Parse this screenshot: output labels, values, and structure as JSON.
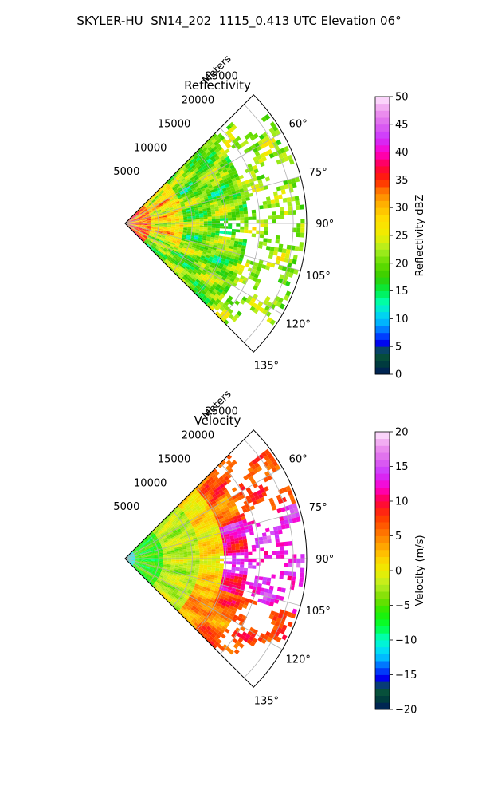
{
  "figure": {
    "title": "SKYLER-HU  SN14_202  1115_0.413 UTC Elevation 06°"
  },
  "chart_data": [
    {
      "type": "heatmap",
      "projection": "polar-sector",
      "title": "Reflectivity",
      "radial_axis_label": "Meters",
      "radial_ticks": [
        "5000",
        "10000",
        "15000",
        "20000",
        "25000"
      ],
      "radial_tick_values": [
        5000,
        10000,
        15000,
        20000,
        25000
      ],
      "rmax": 27000,
      "azimuth_range_deg": [
        45,
        135
      ],
      "azimuth_ticks": [
        "60°",
        "75°",
        "90°",
        "105°",
        "120°",
        "135°"
      ],
      "azimuth_tick_values": [
        60,
        75,
        90,
        105,
        120,
        135
      ],
      "grid": true,
      "colorbar": {
        "label": "Reflectivity dBZ",
        "range": [
          0,
          50
        ],
        "ticks": [
          "0",
          "5",
          "10",
          "15",
          "20",
          "25",
          "30",
          "35",
          "40",
          "45",
          "50"
        ],
        "tick_values": [
          0,
          5,
          10,
          15,
          20,
          25,
          30,
          35,
          40,
          45,
          50
        ],
        "stops": [
          {
            "value": 0,
            "color": "#001a5c"
          },
          {
            "value": 2,
            "color": "#003d3d"
          },
          {
            "value": 4,
            "color": "#0a5a3a"
          },
          {
            "value": 5.5,
            "color": "#0000ee"
          },
          {
            "value": 7,
            "color": "#0044ff"
          },
          {
            "value": 9,
            "color": "#00aaff"
          },
          {
            "value": 11,
            "color": "#00ddee"
          },
          {
            "value": 13,
            "color": "#00ffaa"
          },
          {
            "value": 15,
            "color": "#00ee44"
          },
          {
            "value": 17.5,
            "color": "#33cc00"
          },
          {
            "value": 20,
            "color": "#66dd00"
          },
          {
            "value": 22.5,
            "color": "#aaee22"
          },
          {
            "value": 25,
            "color": "#eeee00"
          },
          {
            "value": 28,
            "color": "#ffdd00"
          },
          {
            "value": 31,
            "color": "#ffaa00"
          },
          {
            "value": 33,
            "color": "#ff7700"
          },
          {
            "value": 35,
            "color": "#ff2200"
          },
          {
            "value": 37.5,
            "color": "#ff0044"
          },
          {
            "value": 40,
            "color": "#ff00cc"
          },
          {
            "value": 42.5,
            "color": "#cc33ff"
          },
          {
            "value": 45,
            "color": "#dd66ee"
          },
          {
            "value": 47.5,
            "color": "#ee99ee"
          },
          {
            "value": 50,
            "color": "#ffe8ff"
          }
        ]
      },
      "field": {
        "description": "high values (30-38) near radar at 50-115 deg, mostly 15-28 elsewhere, patchy echo beyond ~18 km"
      }
    },
    {
      "type": "heatmap",
      "projection": "polar-sector",
      "title": "Velocity",
      "radial_axis_label": "Meters",
      "radial_ticks": [
        "5000",
        "10000",
        "15000",
        "20000",
        "25000"
      ],
      "radial_tick_values": [
        5000,
        10000,
        15000,
        20000,
        25000
      ],
      "rmax": 27000,
      "azimuth_range_deg": [
        45,
        135
      ],
      "azimuth_ticks": [
        "60°",
        "75°",
        "90°",
        "105°",
        "120°",
        "135°"
      ],
      "azimuth_tick_values": [
        60,
        75,
        90,
        105,
        120,
        135
      ],
      "grid": true,
      "colorbar": {
        "label": "Velocity (m/s)",
        "range": [
          -20,
          20
        ],
        "ticks": [
          "−20",
          "−15",
          "−10",
          "−5",
          "0",
          "5",
          "10",
          "15",
          "20"
        ],
        "tick_values": [
          -20,
          -15,
          -10,
          -5,
          0,
          5,
          10,
          15,
          20
        ],
        "stops": [
          {
            "value": -20,
            "color": "#001a5c"
          },
          {
            "value": -18.5,
            "color": "#003d3d"
          },
          {
            "value": -17,
            "color": "#0a5a3a"
          },
          {
            "value": -15.5,
            "color": "#0000ee"
          },
          {
            "value": -14,
            "color": "#0055ff"
          },
          {
            "value": -12.5,
            "color": "#00bbff"
          },
          {
            "value": -11,
            "color": "#00eeee"
          },
          {
            "value": -9.5,
            "color": "#00ffaa"
          },
          {
            "value": -8,
            "color": "#00ff33"
          },
          {
            "value": -6,
            "color": "#22ee00"
          },
          {
            "value": -4,
            "color": "#77dd00"
          },
          {
            "value": -2,
            "color": "#bbee22"
          },
          {
            "value": 0,
            "color": "#eeee00"
          },
          {
            "value": 2,
            "color": "#ffcc00"
          },
          {
            "value": 4,
            "color": "#ff9900"
          },
          {
            "value": 6,
            "color": "#ff6600"
          },
          {
            "value": 8,
            "color": "#ff3300"
          },
          {
            "value": 10,
            "color": "#ff0044"
          },
          {
            "value": 12,
            "color": "#ff00cc"
          },
          {
            "value": 14,
            "color": "#cc33ff"
          },
          {
            "value": 16,
            "color": "#dd66ee"
          },
          {
            "value": 18,
            "color": "#ee99ee"
          },
          {
            "value": 20,
            "color": "#ffe8ff"
          }
        ]
      },
      "field": {
        "description": "about -10 near radar, -7 to -3 inner ring, 0 mid ranges, +4 to +9 in outer south, +12 to +16 beyond 17 km near 80-105 deg"
      }
    }
  ]
}
